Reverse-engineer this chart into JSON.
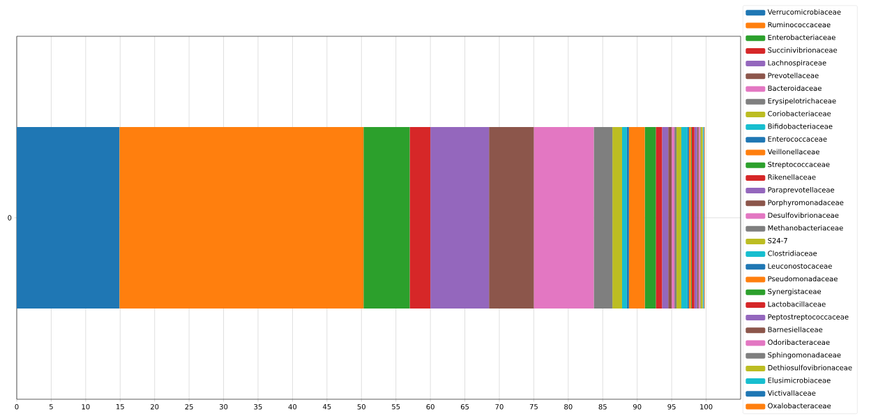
{
  "chart_data": {
    "type": "bar",
    "orientation": "horizontal",
    "stacked": true,
    "categories": [
      "0"
    ],
    "series": [
      {
        "name": "Verrucomicrobiaceae",
        "color": "#1f77b4",
        "values": [
          14.9
        ]
      },
      {
        "name": "Ruminococcaceae",
        "color": "#ff7f0e",
        "values": [
          35.4
        ]
      },
      {
        "name": "Enterobacteriaceae",
        "color": "#2ca02c",
        "values": [
          6.7
        ]
      },
      {
        "name": "Succinivibrionaceae",
        "color": "#d62728",
        "values": [
          3.0
        ]
      },
      {
        "name": "Lachnospiraceae",
        "color": "#9467bd",
        "values": [
          8.5
        ]
      },
      {
        "name": "Prevotellaceae",
        "color": "#8c564b",
        "values": [
          6.5
        ]
      },
      {
        "name": "Bacteroidaceae",
        "color": "#e377c2",
        "values": [
          8.7
        ]
      },
      {
        "name": "Erysipelotrichaceae",
        "color": "#7f7f7f",
        "values": [
          2.7
        ]
      },
      {
        "name": "Coriobacteriaceae",
        "color": "#bcbd22",
        "values": [
          1.4
        ]
      },
      {
        "name": "Bifidobacteriaceae",
        "color": "#17becf",
        "values": [
          0.7
        ]
      },
      {
        "name": "Enterococcaceae",
        "color": "#1f77b4",
        "values": [
          0.3
        ]
      },
      {
        "name": "Veillonellaceae",
        "color": "#ff7f0e",
        "values": [
          2.3
        ]
      },
      {
        "name": "Streptococcaceae",
        "color": "#2ca02c",
        "values": [
          1.6
        ]
      },
      {
        "name": "Rikenellaceae",
        "color": "#d62728",
        "values": [
          0.9
        ]
      },
      {
        "name": "Paraprevotellaceae",
        "color": "#9467bd",
        "values": [
          0.9
        ]
      },
      {
        "name": "Porphyromonadaceae",
        "color": "#8c564b",
        "values": [
          0.5
        ]
      },
      {
        "name": "Desulfovibrionaceae",
        "color": "#e377c2",
        "values": [
          0.4
        ]
      },
      {
        "name": "Methanobacteriaceae",
        "color": "#7f7f7f",
        "values": [
          0.3
        ]
      },
      {
        "name": "S24-7",
        "color": "#bcbd22",
        "values": [
          0.7
        ]
      },
      {
        "name": "Clostridiaceae",
        "color": "#17becf",
        "values": [
          0.9
        ]
      },
      {
        "name": "Leuconostocaceae",
        "color": "#1f77b4",
        "values": [
          0.2
        ]
      },
      {
        "name": "Pseudomonadaceae",
        "color": "#ff7f0e",
        "values": [
          0.3
        ]
      },
      {
        "name": "Synergistaceae",
        "color": "#2ca02c",
        "values": [
          0.1
        ]
      },
      {
        "name": "Lactobacillaceae",
        "color": "#d62728",
        "values": [
          0.4
        ]
      },
      {
        "name": "Peptostreptococcaceae",
        "color": "#9467bd",
        "values": [
          0.4
        ]
      },
      {
        "name": "Barnesiellaceae",
        "color": "#8c564b",
        "values": [
          0.2
        ]
      },
      {
        "name": "Odoribacteraceae",
        "color": "#e377c2",
        "values": [
          0.2
        ]
      },
      {
        "name": "Sphingomonadaceae",
        "color": "#7f7f7f",
        "values": [
          0.1
        ]
      },
      {
        "name": "Dethiosulfovibrionaceae",
        "color": "#bcbd22",
        "values": [
          0.3
        ]
      },
      {
        "name": "Elusimicrobiaceae",
        "color": "#17becf",
        "values": [
          0.1
        ]
      },
      {
        "name": "Victivallaceae",
        "color": "#1f77b4",
        "values": [
          0.1
        ]
      },
      {
        "name": "Oxalobacteraceae",
        "color": "#ff7f0e",
        "values": [
          0.1
        ]
      }
    ],
    "xlim": [
      0,
      105
    ],
    "xticks": [
      0,
      5,
      10,
      15,
      20,
      25,
      30,
      35,
      40,
      45,
      50,
      55,
      60,
      65,
      70,
      75,
      80,
      85,
      90,
      95,
      100
    ],
    "grid": true,
    "legend": "right"
  }
}
